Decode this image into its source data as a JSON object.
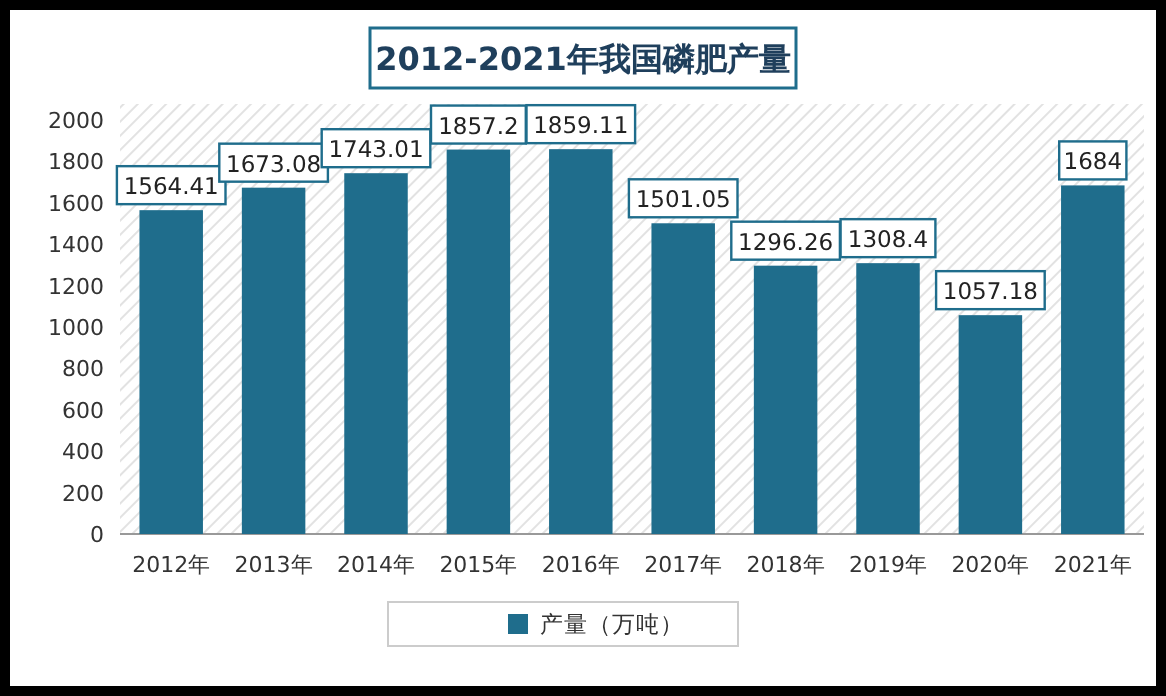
{
  "chart_data": {
    "type": "bar",
    "title": "2012-2021年我国磷肥产量",
    "categories": [
      "2012年",
      "2013年",
      "2014年",
      "2015年",
      "2016年",
      "2017年",
      "2018年",
      "2019年",
      "2020年",
      "2021年"
    ],
    "series": [
      {
        "name": "产量（万吨）",
        "color": "#1f6d8c",
        "values": [
          1564.41,
          1673.08,
          1743.01,
          1857.2,
          1859.11,
          1501.05,
          1296.26,
          1308.4,
          1057.18,
          1684
        ]
      }
    ],
    "ylim": [
      0,
      2000
    ],
    "yticks": [
      0,
      200,
      400,
      600,
      800,
      1000,
      1200,
      1400,
      1600,
      1800,
      2000
    ],
    "data_labels": true,
    "legend": "bottom"
  }
}
